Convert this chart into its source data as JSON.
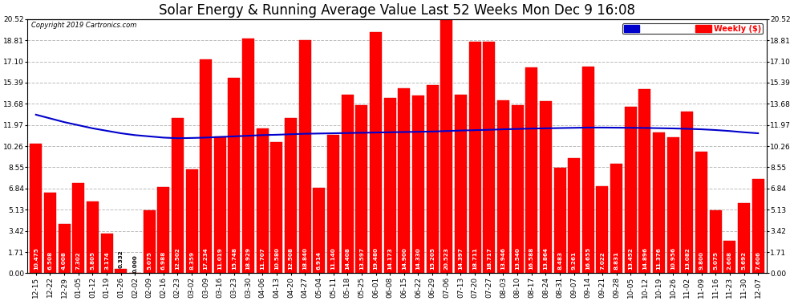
{
  "title": "Solar Energy & Running Average Value Last 52 Weeks Mon Dec 9 16:08",
  "copyright": "Copyright 2019 Cartronics.com",
  "yticks": [
    0.0,
    1.71,
    3.42,
    5.13,
    6.84,
    8.55,
    10.26,
    11.97,
    13.68,
    15.39,
    17.1,
    18.81,
    20.52
  ],
  "bar_color": "#ff0000",
  "bar_edge_color": "#dd0000",
  "avg_line_color": "#0000cc",
  "background_color": "#ffffff",
  "plot_bg_color": "#ffffff",
  "grid_color": "#bbbbbb",
  "categories": [
    "12-15",
    "12-22",
    "12-29",
    "01-05",
    "01-12",
    "01-19",
    "01-26",
    "02-02",
    "02-09",
    "02-16",
    "02-23",
    "03-02",
    "03-09",
    "03-16",
    "03-23",
    "03-30",
    "04-06",
    "04-13",
    "04-20",
    "04-27",
    "05-04",
    "05-11",
    "05-18",
    "05-25",
    "06-01",
    "06-08",
    "06-15",
    "06-22",
    "06-29",
    "07-06",
    "07-13",
    "07-20",
    "07-27",
    "08-03",
    "08-10",
    "08-17",
    "08-24",
    "08-31",
    "09-07",
    "09-14",
    "09-21",
    "09-28",
    "10-05",
    "10-12",
    "10-19",
    "10-26",
    "11-02",
    "11-09",
    "11-16",
    "11-23",
    "11-30",
    "12-07"
  ],
  "values": [
    10.475,
    6.508,
    4.008,
    7.302,
    5.805,
    3.174,
    0.332,
    0.0,
    5.075,
    6.988,
    12.502,
    8.359,
    17.234,
    11.019,
    15.748,
    18.929,
    11.707,
    10.58,
    12.508,
    18.84,
    6.914,
    11.14,
    14.408,
    13.597,
    19.48,
    14.173,
    14.9,
    14.33,
    15.205,
    20.523,
    14.397,
    18.711,
    18.717,
    13.946,
    13.54,
    16.588,
    13.864,
    8.483,
    9.261,
    16.655,
    7.022,
    8.831,
    13.452,
    14.896,
    11.376,
    10.956,
    13.082,
    9.8,
    5.075,
    2.608,
    5.692,
    7.606
  ],
  "running_avg": [
    12.8,
    12.5,
    12.2,
    11.95,
    11.7,
    11.5,
    11.3,
    11.15,
    11.05,
    10.95,
    10.9,
    10.92,
    10.95,
    11.0,
    11.05,
    11.1,
    11.15,
    11.18,
    11.22,
    11.26,
    11.28,
    11.3,
    11.32,
    11.34,
    11.36,
    11.38,
    11.4,
    11.42,
    11.44,
    11.48,
    11.52,
    11.55,
    11.58,
    11.62,
    11.65,
    11.68,
    11.7,
    11.72,
    11.74,
    11.76,
    11.76,
    11.75,
    11.74,
    11.73,
    11.71,
    11.69,
    11.66,
    11.62,
    11.56,
    11.48,
    11.38,
    11.3
  ],
  "ylim": [
    0.0,
    20.52
  ],
  "title_fontsize": 12,
  "tick_fontsize": 6.5,
  "bar_value_fontsize": 5.2
}
